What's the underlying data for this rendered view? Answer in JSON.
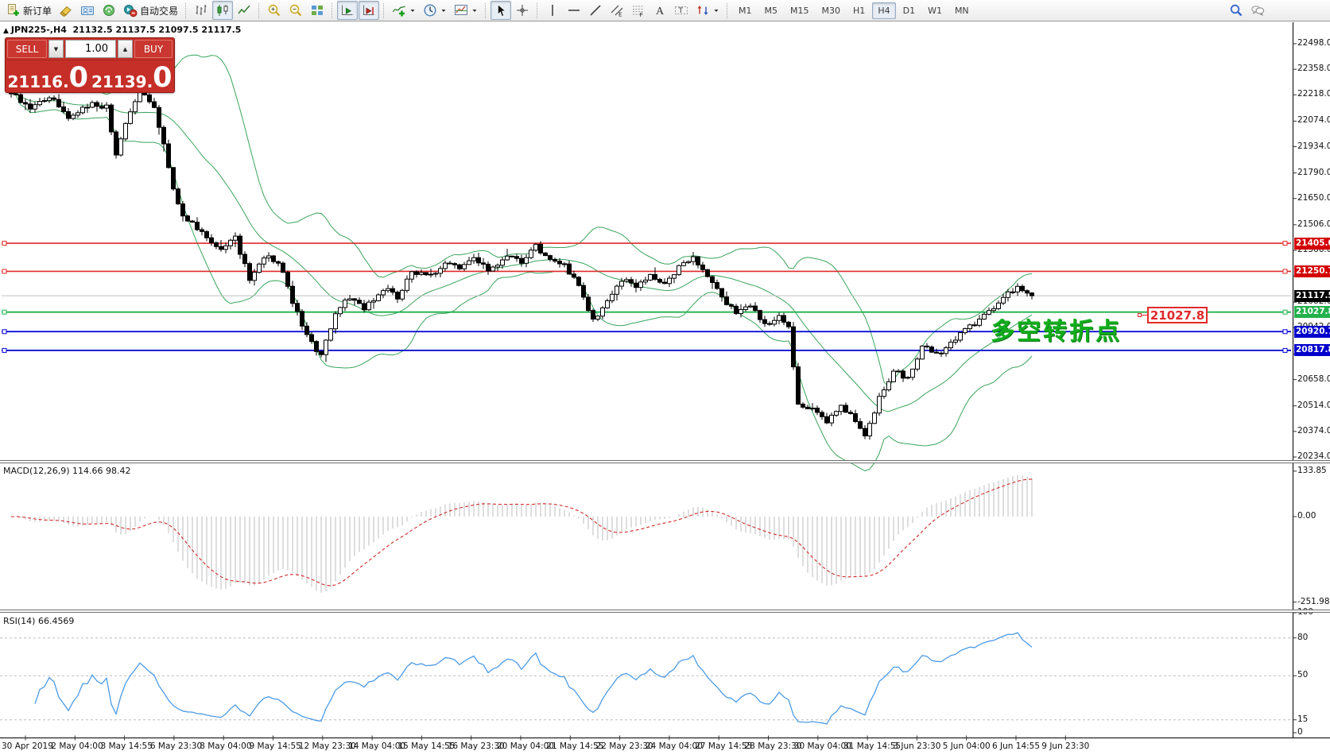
{
  "toolbar": {
    "groups": [
      {
        "items": [
          {
            "name": "new-order-button",
            "icon": "new-order",
            "label": "新订单"
          },
          {
            "name": "eraser-button",
            "icon": "eraser"
          },
          {
            "name": "profiles-button",
            "icon": "profiles"
          },
          {
            "name": "news-button",
            "icon": "news"
          },
          {
            "name": "autotrading-button",
            "icon": "autotrading",
            "label": "自动交易"
          }
        ]
      },
      {
        "items": [
          {
            "name": "bars-chart-button",
            "icon": "bars-chart"
          },
          {
            "name": "candles-chart-button",
            "icon": "candles-chart",
            "selected": true
          },
          {
            "name": "line-chart-button",
            "icon": "line-chart"
          }
        ]
      },
      {
        "items": [
          {
            "name": "zoom-in-button",
            "icon": "zoom-in"
          },
          {
            "name": "zoom-out-button",
            "icon": "zoom-out"
          },
          {
            "name": "tile-windows-button",
            "icon": "tile-windows"
          }
        ]
      },
      {
        "items": [
          {
            "name": "auto-scroll-button",
            "icon": "auto-scroll",
            "selected": true
          },
          {
            "name": "chart-shift-button",
            "icon": "chart-shift",
            "selected": true
          }
        ]
      },
      {
        "items": [
          {
            "name": "indicators-button",
            "icon": "indicators",
            "dropdown": true
          },
          {
            "name": "periods-button",
            "icon": "periods",
            "dropdown": true
          },
          {
            "name": "templates-button",
            "icon": "templates",
            "dropdown": true
          }
        ]
      },
      {
        "items": [
          {
            "name": "cursor-button",
            "icon": "cursor",
            "selected": true
          },
          {
            "name": "crosshair-button",
            "icon": "crosshair"
          }
        ]
      },
      {
        "items": [
          {
            "name": "vertical-line-button",
            "icon": "vline"
          },
          {
            "name": "horizontal-line-button",
            "icon": "hline"
          },
          {
            "name": "trendline-button",
            "icon": "trendline"
          },
          {
            "name": "channel-button",
            "icon": "channel"
          },
          {
            "name": "fibonacci-button",
            "icon": "fibonacci"
          },
          {
            "name": "text-button",
            "icon": "text"
          },
          {
            "name": "label-button",
            "icon": "label"
          },
          {
            "name": "arrows-button",
            "icon": "arrows",
            "dropdown": true
          }
        ]
      }
    ],
    "timeframes": {
      "selected": "H4",
      "items": [
        "M1",
        "M5",
        "M15",
        "M30",
        "H1",
        "H4",
        "D1",
        "W1",
        "MN"
      ]
    },
    "right": [
      {
        "name": "search-button",
        "icon": "search"
      },
      {
        "name": "chat-button",
        "icon": "chat"
      }
    ]
  },
  "symbol_bar": {
    "collapse": "▲",
    "symbol": "JPN225-,H4",
    "ohlc": "21132.5 21137.5 21097.5 21117.5"
  },
  "trade_panel": {
    "sell_label": "SELL",
    "buy_label": "BUY",
    "volume": "1.00",
    "down_glyph": "▼",
    "up_glyph": "▲",
    "sell_price": {
      "main": "21116",
      "dot": ".",
      "big": "0"
    },
    "buy_price": {
      "main": "21139",
      "dot": ".",
      "big": "0"
    }
  },
  "price_axis_ticks": [
    "22498.0",
    "22358.0",
    "22218.0",
    "22074.0",
    "21934.0",
    "21790.0",
    "21650.0",
    "21506.0",
    "21366.0",
    "21226.0",
    "21082.0",
    "20942.0",
    "20798.0",
    "20658.0",
    "20514.0",
    "20374.0",
    "20234.0"
  ],
  "levels": [
    {
      "name": "resistance-line-1",
      "value": 21405.0,
      "label": "21405.0",
      "line": "#e02a2a",
      "badge": "#d40000",
      "width": 1.6,
      "marker": true
    },
    {
      "name": "resistance-line-2",
      "value": 21250.7,
      "label": "21250.7",
      "line": "#e02a2a",
      "badge": "#d40000",
      "width": 1.6,
      "marker": true
    },
    {
      "name": "current-price-line",
      "value": 21117.5,
      "label": "21117.5",
      "line": "#c0c0c0",
      "badge": "#000000",
      "width": 1,
      "marker": false
    },
    {
      "name": "pivot-line",
      "value": 21027.8,
      "label": "21027.8",
      "line": "#22b14c",
      "badge": "#22b14c",
      "width": 1.8,
      "marker": true
    },
    {
      "name": "support-line-1",
      "value": 20920.7,
      "label": "20920.7",
      "line": "#0000d4",
      "badge": "#0000cc",
      "width": 1.8,
      "marker": true
    },
    {
      "name": "support-line-2",
      "value": 20817.8,
      "label": "20817.8",
      "line": "#0000d4",
      "badge": "#0000cc",
      "width": 1.8,
      "marker": true
    }
  ],
  "annotation": {
    "text": "多空转折点",
    "price_tag": "21027.8"
  },
  "macd_panel": {
    "label": "MACD(12,26,9) 114.66 98.42",
    "axis": [
      "133.85",
      "0.00",
      "-251.98"
    ]
  },
  "rsi_panel": {
    "label": "RSI(14) 66.4569",
    "axis": [
      "100",
      "80",
      "50",
      "15",
      "0"
    ],
    "level_lines": [
      80,
      50,
      15
    ]
  },
  "time_axis": [
    "30 Apr 2019",
    "2 May 04:00",
    "3 May 14:55",
    "6 May 23:30",
    "8 May 04:00",
    "9 May 14:55",
    "12 May 23:30",
    "14 May 04:00",
    "15 May 14:55",
    "16 May 23:30",
    "20 May 04:00",
    "21 May 14:55",
    "22 May 23:30",
    "24 May 04:00",
    "27 May 14:55",
    "28 May 23:30",
    "30 May 04:00",
    "31 May 14:55",
    "3 Jun 23:30",
    "5 Jun 04:00",
    "6 Jun 14:55",
    "9 Jun 23:30"
  ],
  "chart_data": {
    "type": "candlestick",
    "symbol": "JPN225-",
    "timeframe": "H4",
    "last_ohlc": {
      "open": 21132.5,
      "high": 21137.5,
      "low": 21097.5,
      "close": 21117.5
    },
    "price_axis_range": [
      20234.0,
      22498.0
    ],
    "bid": 21116.0,
    "ask": 21139.0,
    "indicators": [
      "Bollinger Bands 20,2 (green)",
      "MACD(12,26,9) main 114.66 signal 98.42",
      "RSI(14) 66.4569"
    ],
    "level_values": [
      21405.0,
      21250.7,
      21117.5,
      21027.8,
      20920.7,
      20817.8
    ],
    "waypoints": [
      [
        0,
        22230
      ],
      [
        4,
        22140
      ],
      [
        8,
        22210
      ],
      [
        12,
        22100
      ],
      [
        17,
        22170
      ],
      [
        20,
        22150
      ],
      [
        22,
        21880
      ],
      [
        24,
        22050
      ],
      [
        27,
        22260
      ],
      [
        30,
        22150
      ],
      [
        32,
        21950
      ],
      [
        34,
        21700
      ],
      [
        36,
        21560
      ],
      [
        40,
        21470
      ],
      [
        44,
        21370
      ],
      [
        47,
        21430
      ],
      [
        50,
        21210
      ],
      [
        53,
        21330
      ],
      [
        56,
        21310
      ],
      [
        59,
        21090
      ],
      [
        62,
        20890
      ],
      [
        65,
        20790
      ],
      [
        68,
        21030
      ],
      [
        71,
        21110
      ],
      [
        74,
        21050
      ],
      [
        78,
        21160
      ],
      [
        81,
        21110
      ],
      [
        84,
        21250
      ],
      [
        88,
        21230
      ],
      [
        91,
        21300
      ],
      [
        94,
        21260
      ],
      [
        97,
        21340
      ],
      [
        100,
        21250
      ],
      [
        104,
        21340
      ],
      [
        107,
        21300
      ],
      [
        110,
        21390
      ],
      [
        113,
        21320
      ],
      [
        116,
        21290
      ],
      [
        119,
        21170
      ],
      [
        122,
        20990
      ],
      [
        125,
        21080
      ],
      [
        128,
        21210
      ],
      [
        131,
        21160
      ],
      [
        134,
        21230
      ],
      [
        137,
        21190
      ],
      [
        140,
        21270
      ],
      [
        143,
        21320
      ],
      [
        146,
        21230
      ],
      [
        149,
        21120
      ],
      [
        152,
        21010
      ],
      [
        155,
        21070
      ],
      [
        158,
        20950
      ],
      [
        161,
        21010
      ],
      [
        163,
        20950
      ],
      [
        165,
        20520
      ],
      [
        168,
        20490
      ],
      [
        171,
        20420
      ],
      [
        174,
        20530
      ],
      [
        177,
        20420
      ],
      [
        179,
        20340
      ],
      [
        182,
        20560
      ],
      [
        185,
        20700
      ],
      [
        188,
        20670
      ],
      [
        191,
        20840
      ],
      [
        194,
        20790
      ],
      [
        197,
        20850
      ],
      [
        200,
        20950
      ],
      [
        203,
        20980
      ],
      [
        206,
        21060
      ],
      [
        209,
        21140
      ],
      [
        211,
        21160
      ],
      [
        213,
        21130
      ],
      [
        214,
        21117.5
      ]
    ]
  }
}
